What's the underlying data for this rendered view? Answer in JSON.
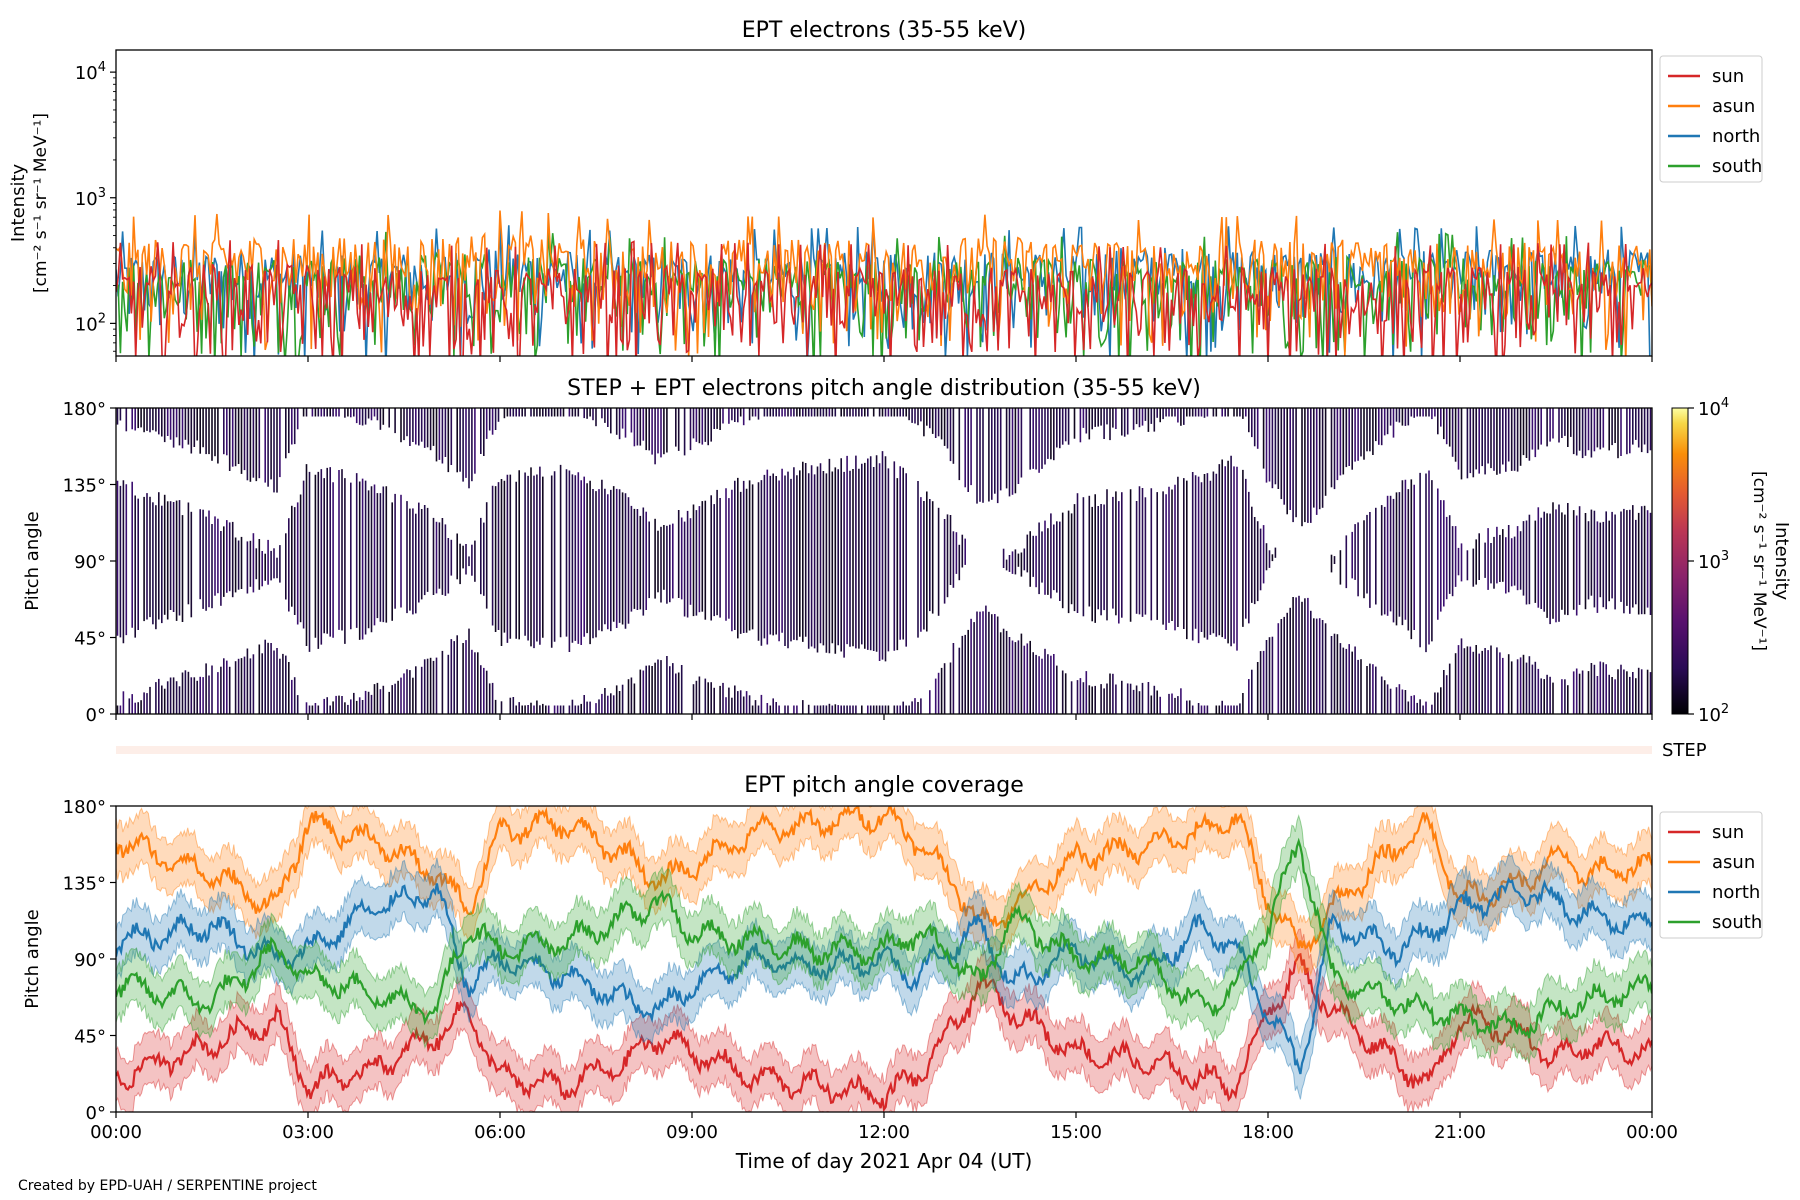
{
  "figure": {
    "footer": "Created by EPD-UAH / SERPENTINE project",
    "xlabel": "Time of day 2021 Apr 04 (UT)",
    "xticks": [
      "00:00",
      "03:00",
      "06:00",
      "09:00",
      "12:00",
      "15:00",
      "18:00",
      "21:00",
      "00:00"
    ],
    "step_label": "STEP"
  },
  "colors": {
    "sun": "#d62728",
    "asun": "#ff7f0e",
    "north": "#1f77b4",
    "south": "#2ca02c",
    "step_band": "#fdeee8"
  },
  "chart_data": [
    {
      "type": "line",
      "title": "EPT electrons (35-55 keV)",
      "ylabel": "Intensity",
      "yunit": "[cm⁻² s⁻¹ sr⁻¹ MeV⁻¹]",
      "yscale": "log",
      "ylim": [
        55,
        15000
      ],
      "yticks": [
        {
          "value": 100,
          "base": "10",
          "exp": "2"
        },
        {
          "value": 1000,
          "base": "10",
          "exp": "3"
        },
        {
          "value": 10000,
          "base": "10",
          "exp": "4"
        }
      ],
      "xlim": [
        0,
        24
      ],
      "x_unit": "hours UT, 2021 Apr 04",
      "legend": "top-right (outside)",
      "series": [
        {
          "name": "sun",
          "x": [
            0,
            2,
            4,
            6,
            8,
            10,
            12,
            14,
            16,
            18,
            20,
            22,
            24
          ],
          "values": [
            150,
            160,
            150,
            140,
            155,
            150,
            145,
            150,
            140,
            150,
            145,
            150,
            150
          ]
        },
        {
          "name": "asun",
          "x": [
            0,
            2,
            4,
            6,
            8,
            10,
            12,
            14,
            16,
            18,
            20,
            22,
            24
          ],
          "values": [
            260,
            280,
            270,
            300,
            250,
            270,
            260,
            280,
            250,
            270,
            260,
            250,
            240
          ]
        },
        {
          "name": "north",
          "x": [
            0,
            2,
            4,
            6,
            8,
            10,
            12,
            14,
            16,
            18,
            20,
            22,
            24
          ],
          "values": [
            200,
            210,
            200,
            230,
            200,
            210,
            220,
            210,
            230,
            220,
            210,
            230,
            220
          ]
        },
        {
          "name": "south",
          "x": [
            0,
            2,
            4,
            6,
            8,
            10,
            12,
            14,
            16,
            18,
            20,
            22,
            24
          ],
          "values": [
            180,
            190,
            200,
            210,
            180,
            190,
            180,
            190,
            180,
            190,
            200,
            180,
            190
          ]
        }
      ],
      "grid": false
    },
    {
      "type": "heatmap",
      "title": "STEP + EPT electrons pitch angle distribution (35-55 keV)",
      "ylabel": "Pitch angle",
      "ylim": [
        0,
        180
      ],
      "yticks": [
        "0°",
        "45°",
        "90°",
        "135°",
        "180°"
      ],
      "xlim": [
        0,
        24
      ],
      "colorbar": {
        "label": "Intensity",
        "unit": "[cm⁻² s⁻¹ sr⁻¹ MeV⁻¹]",
        "scale": "log",
        "range": [
          100,
          10000
        ],
        "ticks": [
          {
            "base": "10",
            "exp": "2"
          },
          {
            "base": "10",
            "exp": "3"
          },
          {
            "base": "10",
            "exp": "4"
          }
        ],
        "colormap": "inferno"
      },
      "typical_value": 150,
      "pattern": "dense dark-purple vertical stripes with white gaps around the sunward/anti-sunward sector centres"
    },
    {
      "type": "line",
      "title": "EPT pitch angle coverage",
      "ylabel": "Pitch angle",
      "ylim": [
        0,
        180
      ],
      "yticks": [
        "0°",
        "45°",
        "90°",
        "135°",
        "180°"
      ],
      "xlim": [
        0,
        24
      ],
      "x_unit": "hours UT, 2021 Apr 04",
      "legend": "top-right (outside)",
      "band_halfwidth": 15,
      "series": [
        {
          "name": "sun",
          "x": [
            0,
            1.5,
            2.5,
            3,
            4,
            5,
            5.5,
            6,
            7,
            8,
            8.5,
            9,
            10,
            11,
            12,
            12.5,
            13,
            13.5,
            14,
            15,
            16,
            17,
            17.5,
            18,
            18.5,
            19,
            20,
            20.5,
            21,
            22,
            22.5,
            23,
            24
          ],
          "values": [
            20,
            40,
            55,
            15,
            25,
            45,
            60,
            20,
            15,
            30,
            45,
            35,
            20,
            15,
            10,
            20,
            45,
            75,
            60,
            35,
            30,
            20,
            15,
            60,
            85,
            60,
            30,
            15,
            55,
            45,
            30,
            40,
            35
          ]
        },
        {
          "name": "asun",
          "x": [
            0,
            1.5,
            2.5,
            3,
            4,
            5,
            5.5,
            6,
            7,
            8,
            8.5,
            9,
            10,
            11,
            12,
            12.5,
            13,
            13.5,
            14,
            15,
            16,
            17,
            17.5,
            18,
            18.5,
            19,
            20,
            20.5,
            21,
            22,
            22.5,
            23,
            24
          ],
          "values": [
            160,
            140,
            120,
            170,
            160,
            140,
            120,
            165,
            170,
            150,
            135,
            145,
            165,
            170,
            175,
            160,
            140,
            110,
            120,
            150,
            155,
            165,
            175,
            125,
            95,
            120,
            155,
            170,
            125,
            135,
            150,
            140,
            145
          ]
        },
        {
          "name": "north",
          "x": [
            0,
            1.5,
            2.5,
            3,
            4,
            5,
            5.5,
            6,
            7,
            8,
            8.5,
            9,
            10,
            11,
            12,
            12.5,
            13,
            13.5,
            14,
            15,
            16,
            17,
            17.5,
            18,
            18.5,
            19,
            20,
            20.5,
            21,
            22,
            22.5,
            23,
            24
          ],
          "values": [
            100,
            110,
            90,
            95,
            120,
            130,
            75,
            90,
            80,
            65,
            60,
            75,
            90,
            85,
            90,
            80,
            95,
            110,
            75,
            95,
            80,
            110,
            95,
            60,
            25,
            110,
            95,
            105,
            120,
            130,
            125,
            115,
            110
          ]
        },
        {
          "name": "south",
          "x": [
            0,
            1.5,
            2.5,
            3,
            4,
            5,
            5.5,
            6,
            7,
            8,
            8.5,
            9,
            10,
            11,
            12,
            12.5,
            13,
            13.5,
            14,
            15,
            16,
            17,
            17.5,
            18,
            18.5,
            19,
            20,
            20.5,
            21,
            22,
            22.5,
            23,
            24
          ],
          "values": [
            75,
            65,
            95,
            80,
            70,
            60,
            110,
            95,
            100,
            115,
            125,
            105,
            100,
            95,
            95,
            105,
            95,
            75,
            115,
            90,
            90,
            60,
            75,
            110,
            160,
            80,
            65,
            60,
            55,
            50,
            60,
            65,
            75
          ]
        }
      ],
      "grid": false
    }
  ]
}
